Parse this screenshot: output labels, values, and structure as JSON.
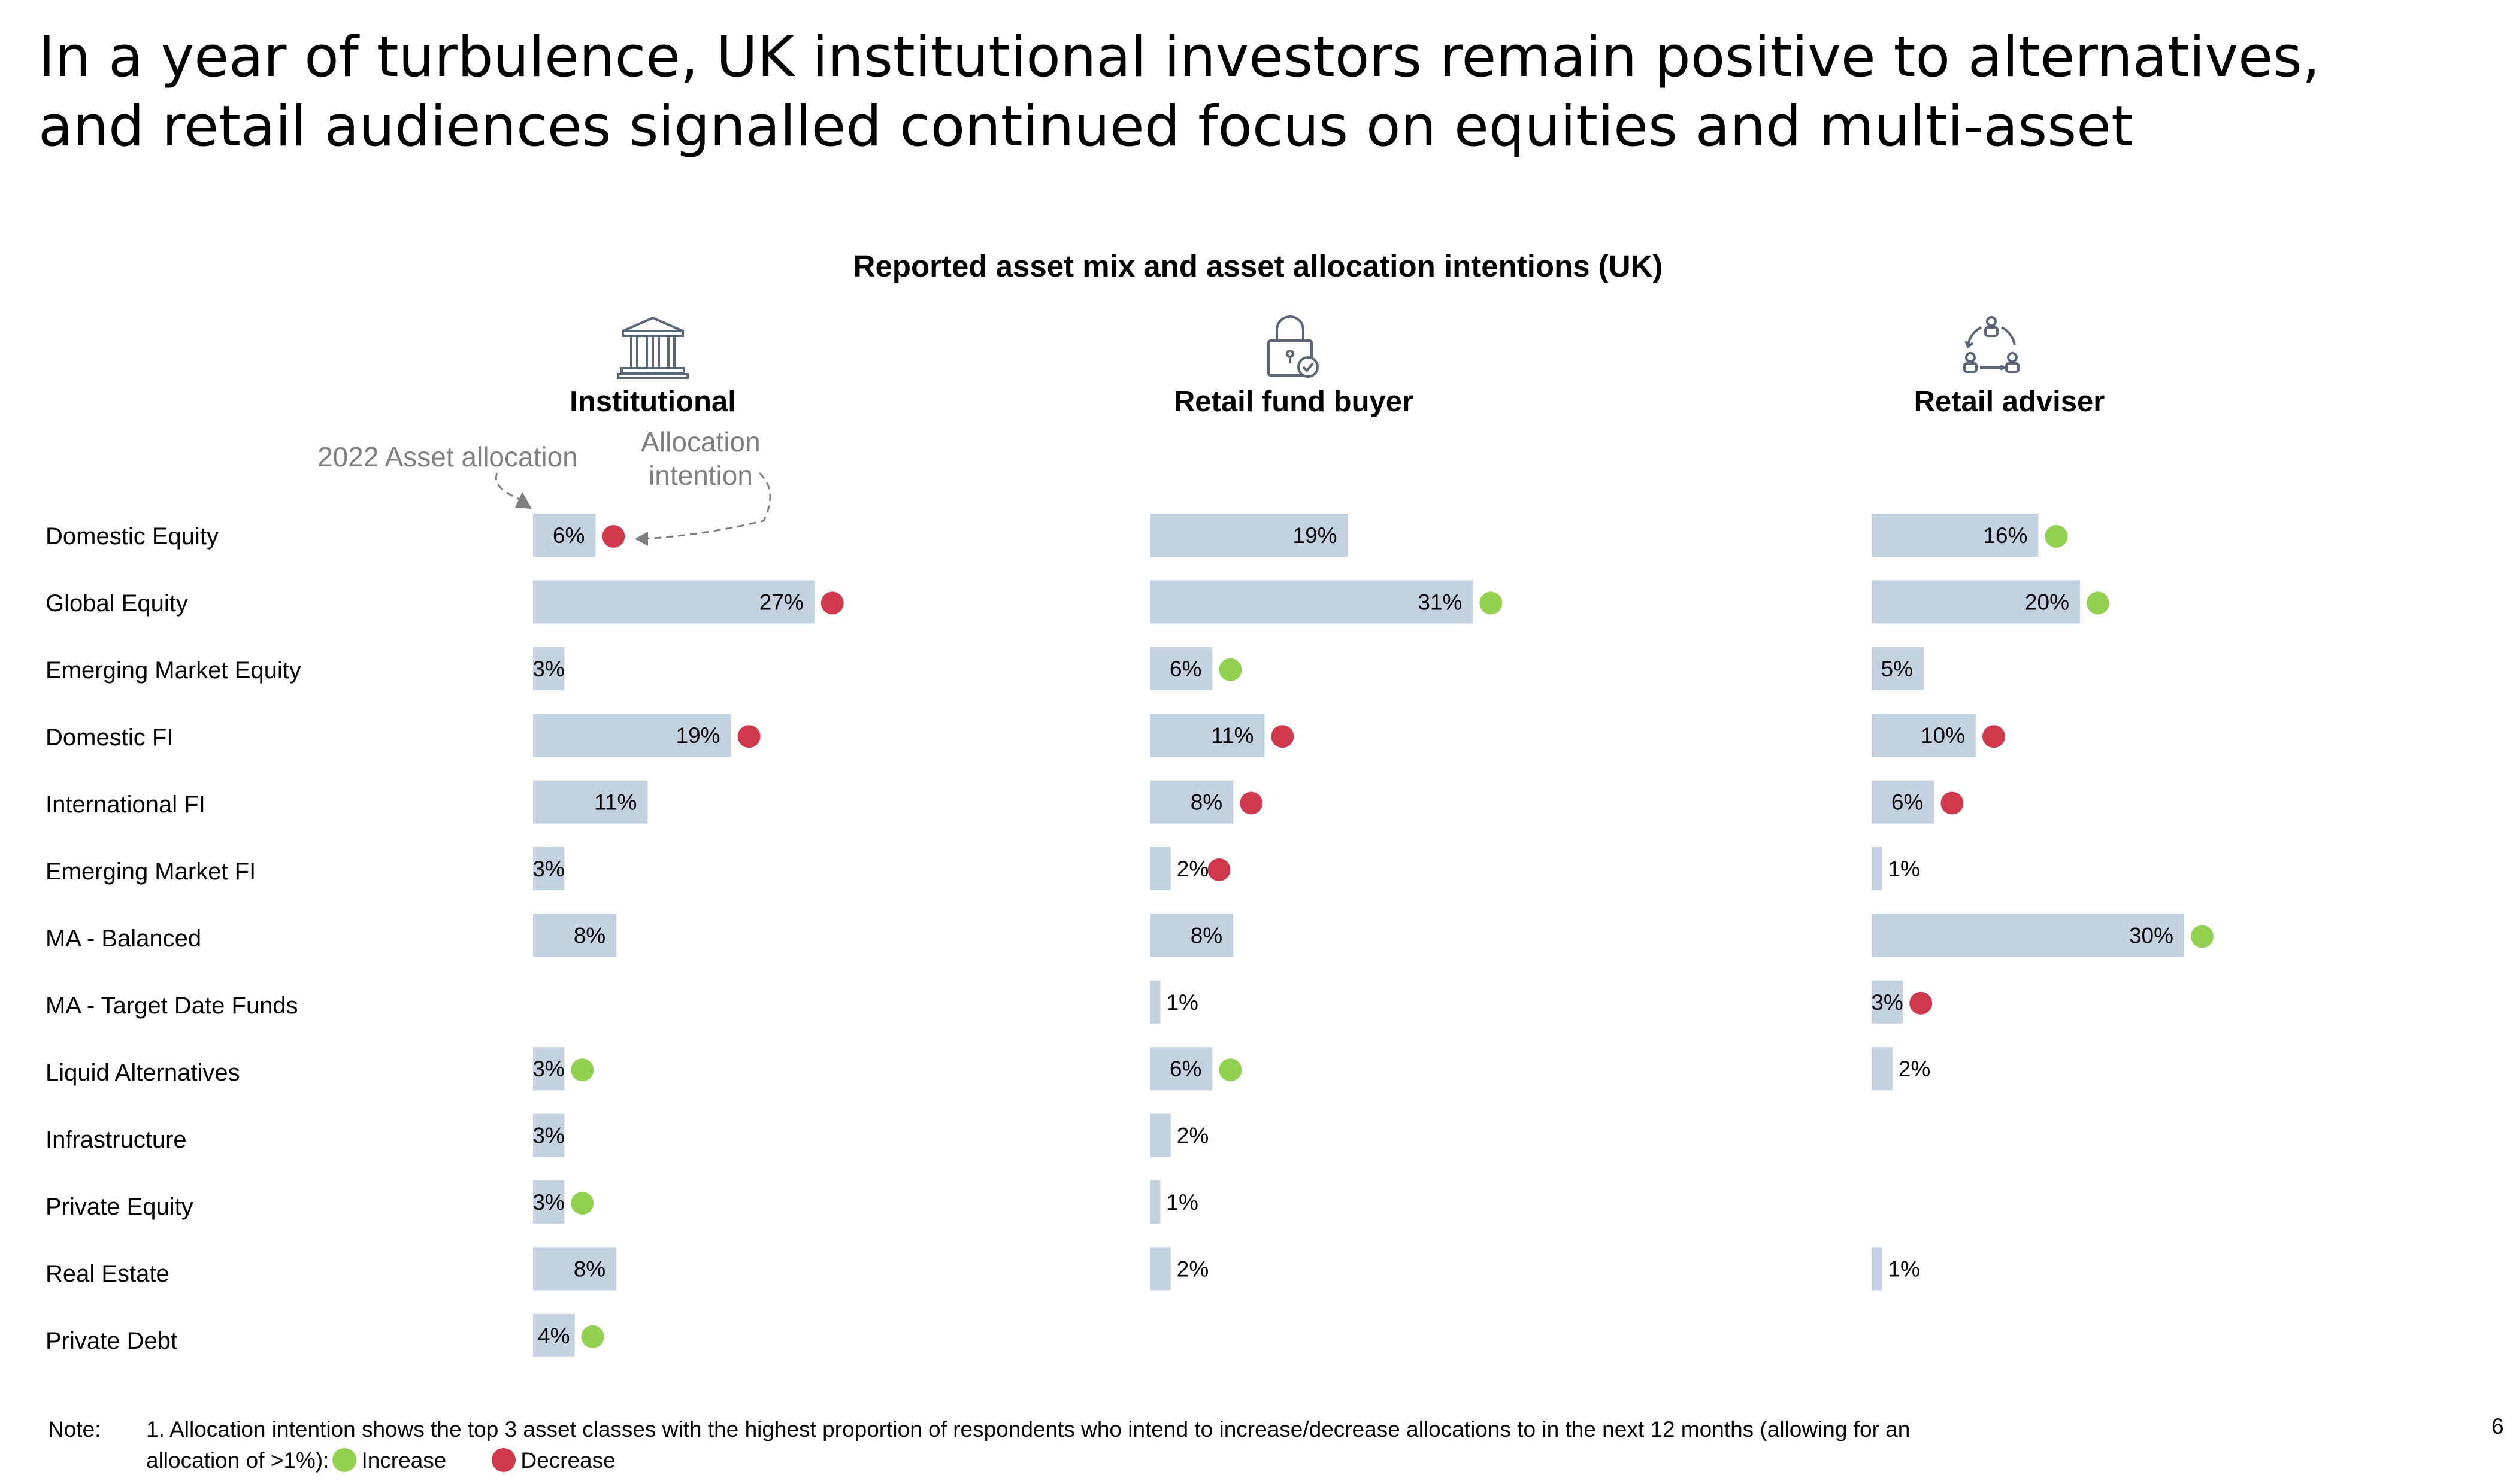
{
  "title": {
    "line1": "In a year of turbulence, UK institutional investors remain positive to alternatives,",
    "line2": "and retail audiences signalled continued focus on equities and multi-asset"
  },
  "chart_data": {
    "type": "bar",
    "title": "Reported asset mix and asset allocation intentions (UK)",
    "categories": [
      "Domestic Equity",
      "Global Equity",
      "Emerging Market Equity",
      "Domestic FI",
      "International FI",
      "Emerging Market FI",
      "MA - Balanced",
      "MA - Target Date Funds",
      "Liquid Alternatives",
      "Infrastructure",
      "Private Equity",
      "Real Estate",
      "Private Debt"
    ],
    "series": [
      {
        "name": "Institutional",
        "icon": "bank-building-icon",
        "values": [
          6,
          27,
          3,
          19,
          11,
          3,
          8,
          null,
          3,
          3,
          3,
          8,
          4
        ],
        "labels": [
          "6%",
          "27%",
          "3%",
          "19%",
          "11%",
          "3%",
          "8%",
          null,
          "3%",
          "3%",
          "3%",
          "8%",
          "4%"
        ],
        "intentions": [
          "decrease",
          "decrease",
          null,
          "decrease",
          null,
          null,
          null,
          null,
          "increase",
          null,
          "increase",
          null,
          "increase"
        ]
      },
      {
        "name": "Retail fund buyer",
        "icon": "padlock-check-icon",
        "values": [
          19,
          31,
          6,
          11,
          8,
          2,
          8,
          1,
          6,
          2,
          1,
          2,
          null
        ],
        "labels": [
          "19%",
          "31%",
          "6%",
          "11%",
          "8%",
          "2%",
          "8%",
          "1%",
          "6%",
          "2%",
          "1%",
          "2%",
          null
        ],
        "intentions": [
          null,
          "increase",
          "increase",
          "decrease",
          "decrease",
          "decrease",
          null,
          null,
          "increase",
          null,
          null,
          null,
          null
        ]
      },
      {
        "name": "Retail adviser",
        "icon": "people-network-icon",
        "values": [
          16,
          20,
          5,
          10,
          6,
          1,
          30,
          3,
          2,
          null,
          null,
          1,
          null
        ],
        "labels": [
          "16%",
          "20%",
          "5%",
          "10%",
          "6%",
          "1%",
          "30%",
          "3%",
          "2%",
          null,
          null,
          "1%",
          null
        ],
        "intentions": [
          "increase",
          "increase",
          null,
          "decrease",
          "decrease",
          null,
          "increase",
          "decrease",
          null,
          null,
          null,
          null,
          null
        ]
      }
    ],
    "annotations": {
      "asset_allocation": "2022 Asset allocation",
      "allocation_intention_line1": "Allocation",
      "allocation_intention_line2": "intention"
    }
  },
  "colors": {
    "bar": "#c3d1e0",
    "increase": "#92d050",
    "decrease": "#d0384e",
    "annotation": "#7f7f7f"
  },
  "note": {
    "label": "Note:",
    "line1": "1. Allocation intention shows the top 3 asset classes with the highest proportion of respondents who intend to increase/decrease allocations to in the next 12 months (allowing for an",
    "line2": "allocation of >1%):",
    "increase_label": "Increase",
    "decrease_label": "Decrease"
  },
  "page_number": "6"
}
